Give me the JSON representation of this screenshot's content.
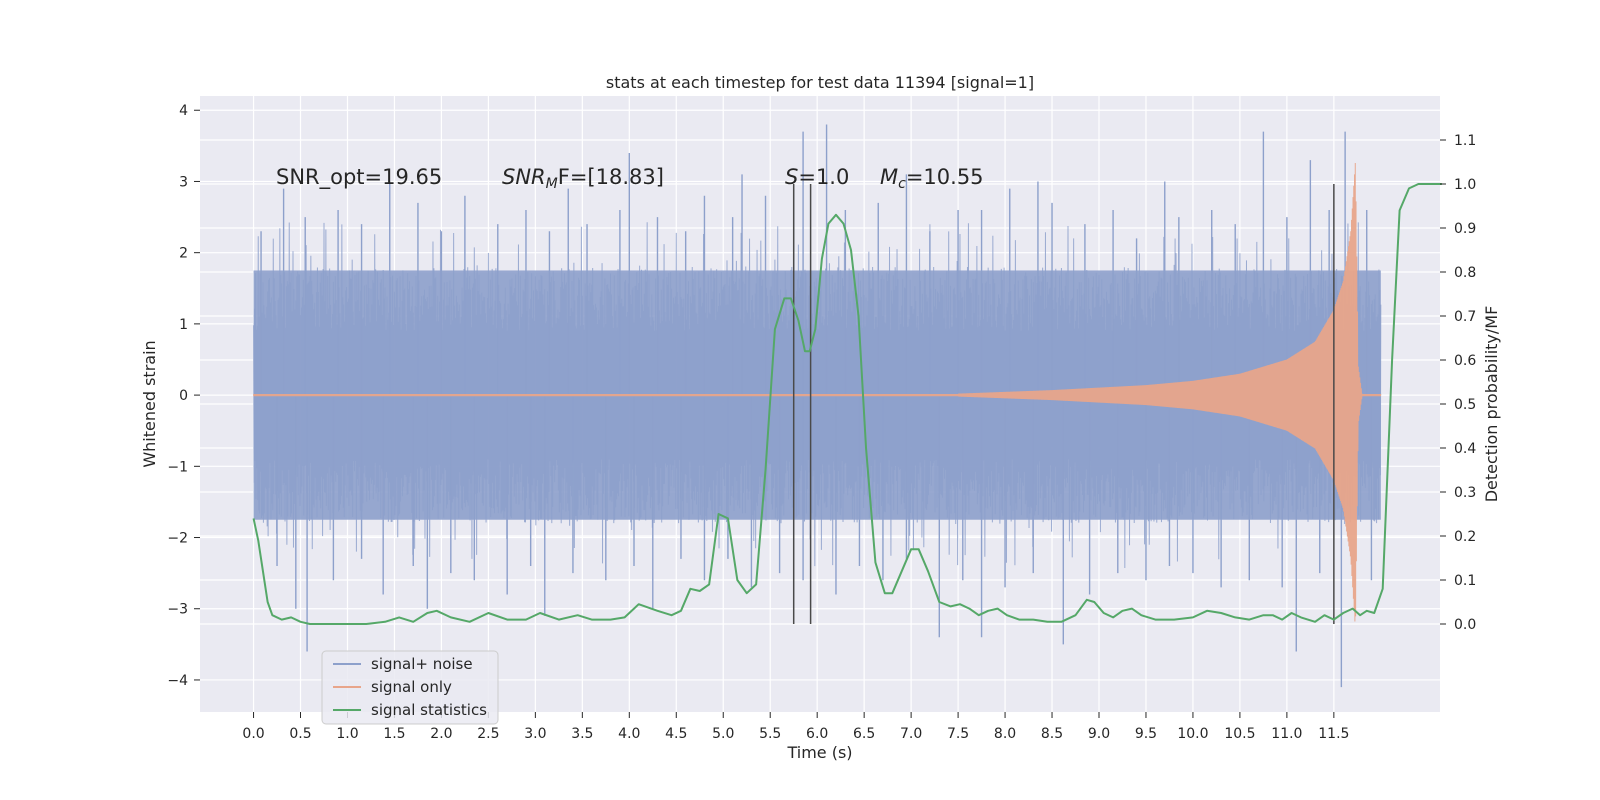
{
  "chart_data": {
    "type": "line",
    "title": "stats at each timestep for test data 11394 [signal=1]",
    "xlabel": "Time (s)",
    "ylabel_left": "Whitened strain",
    "ylabel_right": "Detection probability/MF",
    "xlim": [
      -0.57,
      12.63
    ],
    "ylim_left": [
      -4.45,
      4.2
    ],
    "ylim_right": [
      -0.2,
      1.2
    ],
    "x_ticks": [
      0.0,
      0.5,
      1.0,
      1.5,
      2.0,
      2.5,
      3.0,
      3.5,
      4.0,
      4.5,
      5.0,
      5.5,
      6.0,
      6.5,
      7.0,
      7.5,
      8.0,
      8.5,
      9.0,
      9.5,
      10.0,
      10.5,
      11.0,
      11.5
    ],
    "x_tick_labels": [
      "0.0",
      "0.5",
      "1.0",
      "1.5",
      "2.0",
      "2.5",
      "3.0",
      "3.5",
      "4.0",
      "4.5",
      "5.0",
      "5.5",
      "6.0",
      "6.5",
      "7.0",
      "7.5",
      "8.0",
      "8.5",
      "9.0",
      "9.5",
      "10.0",
      "10.5",
      "11.0",
      "11.5"
    ],
    "y_left_ticks": [
      -4,
      -3,
      -2,
      -1,
      0,
      1,
      2,
      3,
      4
    ],
    "y_left_tick_labels": [
      "−4",
      "−3",
      "−2",
      "−1",
      "0",
      "1",
      "2",
      "3",
      "4"
    ],
    "y_right_ticks": [
      0.0,
      0.1,
      0.2,
      0.3,
      0.4,
      0.5,
      0.6,
      0.7,
      0.8,
      0.9,
      1.0,
      1.1
    ],
    "y_right_tick_labels": [
      "0.0",
      "0.1",
      "0.2",
      "0.3",
      "0.4",
      "0.5",
      "0.6",
      "0.7",
      "0.8",
      "0.9",
      "1.0",
      "1.1"
    ],
    "annotations": {
      "snr_opt": "SNR_opt=19.65",
      "snr_mf_label": "SNR",
      "snr_mf_sub": "M",
      "snr_mf_rest": "F=[18.83]",
      "s_label": "S",
      "s_value": "=1.0",
      "mc_label": "M",
      "mc_sub": "c",
      "mc_value": "=10.55"
    },
    "vertical_lines_x": [
      5.75,
      5.93,
      11.5
    ],
    "vertical_lines_range_right": [
      0.0,
      1.0
    ],
    "legend": {
      "placement": "lower-left",
      "entries": [
        {
          "label": "signal+ noise",
          "color": "#8da0cb"
        },
        {
          "label": "signal only",
          "color": "#e8a58a"
        },
        {
          "label": "signal statistics",
          "color": "#55a868"
        }
      ]
    },
    "series": [
      {
        "name": "signal+ noise",
        "color": "#8da0cb",
        "x_range": [
          0.0,
          12.0
        ],
        "envelope_lower": -1.75,
        "envelope_upper": 1.75,
        "peaks": [
          [
            0.08,
            2.3
          ],
          [
            0.32,
            2.9
          ],
          [
            0.55,
            2.5
          ],
          [
            0.9,
            2.6
          ],
          [
            1.15,
            2.4
          ],
          [
            1.45,
            3.0
          ],
          [
            1.75,
            2.7
          ],
          [
            2.0,
            2.3
          ],
          [
            2.25,
            2.8
          ],
          [
            2.6,
            2.4
          ],
          [
            2.9,
            2.6
          ],
          [
            3.15,
            2.3
          ],
          [
            3.35,
            2.9
          ],
          [
            3.55,
            2.4
          ],
          [
            3.9,
            2.6
          ],
          [
            4.0,
            3.4
          ],
          [
            4.3,
            2.5
          ],
          [
            4.6,
            2.3
          ],
          [
            4.8,
            2.8
          ],
          [
            5.1,
            2.5
          ],
          [
            5.2,
            3.1
          ],
          [
            5.45,
            2.8
          ],
          [
            5.75,
            2.9
          ],
          [
            5.85,
            3.7
          ],
          [
            6.1,
            3.8
          ],
          [
            6.3,
            2.6
          ],
          [
            6.65,
            2.7
          ],
          [
            6.95,
            3.1
          ],
          [
            7.2,
            2.3
          ],
          [
            7.5,
            2.6
          ],
          [
            7.75,
            2.6
          ],
          [
            8.05,
            2.9
          ],
          [
            8.35,
            3.0
          ],
          [
            8.5,
            2.7
          ],
          [
            8.85,
            2.4
          ],
          [
            9.15,
            2.6
          ],
          [
            9.4,
            2.2
          ],
          [
            9.7,
            3.0
          ],
          [
            9.85,
            2.5
          ],
          [
            10.2,
            2.6
          ],
          [
            10.45,
            2.4
          ],
          [
            10.75,
            3.7
          ],
          [
            11.0,
            2.5
          ],
          [
            11.25,
            3.3
          ],
          [
            11.45,
            2.6
          ],
          [
            11.62,
            3.7
          ],
          [
            11.85,
            2.6
          ]
        ],
        "troughs": [
          [
            0.25,
            -2.4
          ],
          [
            0.45,
            -3.0
          ],
          [
            0.57,
            -3.6
          ],
          [
            0.85,
            -2.6
          ],
          [
            1.15,
            -2.3
          ],
          [
            1.38,
            -2.8
          ],
          [
            1.7,
            -2.4
          ],
          [
            1.85,
            -3.0
          ],
          [
            2.1,
            -2.5
          ],
          [
            2.35,
            -2.6
          ],
          [
            2.7,
            -2.8
          ],
          [
            2.95,
            -2.4
          ],
          [
            3.1,
            -3.1
          ],
          [
            3.4,
            -2.5
          ],
          [
            3.75,
            -2.6
          ],
          [
            4.05,
            -2.4
          ],
          [
            4.25,
            -3.0
          ],
          [
            4.55,
            -2.3
          ],
          [
            4.8,
            -2.6
          ],
          [
            5.05,
            -2.3
          ],
          [
            5.3,
            -2.7
          ],
          [
            5.6,
            -2.5
          ],
          [
            5.85,
            -2.6
          ],
          [
            6.2,
            -2.8
          ],
          [
            6.45,
            -2.4
          ],
          [
            6.7,
            -2.6
          ],
          [
            6.95,
            -2.3
          ],
          [
            7.3,
            -3.4
          ],
          [
            7.55,
            -2.6
          ],
          [
            7.75,
            -3.4
          ],
          [
            8.0,
            -2.7
          ],
          [
            8.3,
            -2.5
          ],
          [
            8.62,
            -3.5
          ],
          [
            8.9,
            -2.8
          ],
          [
            9.2,
            -2.5
          ],
          [
            9.5,
            -2.6
          ],
          [
            9.75,
            -2.4
          ],
          [
            10.0,
            -2.5
          ],
          [
            10.3,
            -2.7
          ],
          [
            10.6,
            -2.6
          ],
          [
            10.95,
            -2.7
          ],
          [
            11.1,
            -3.6
          ],
          [
            11.35,
            -2.5
          ],
          [
            11.58,
            -4.1
          ],
          [
            11.9,
            -2.6
          ]
        ]
      },
      {
        "name": "signal only",
        "color": "#e8a58a",
        "x_range": [
          0.0,
          12.0
        ],
        "chirp_start": 7.5,
        "merger_time": 11.73,
        "amplitude_points": [
          [
            7.5,
            0.02
          ],
          [
            8.5,
            0.07
          ],
          [
            9.5,
            0.14
          ],
          [
            10.0,
            0.2
          ],
          [
            10.5,
            0.3
          ],
          [
            11.0,
            0.5
          ],
          [
            11.3,
            0.75
          ],
          [
            11.5,
            1.2
          ],
          [
            11.6,
            1.6
          ],
          [
            11.68,
            2.3
          ],
          [
            11.73,
            3.3
          ],
          [
            11.76,
            0.4
          ],
          [
            11.8,
            0.02
          ]
        ]
      },
      {
        "name": "signal statistics",
        "color": "#55a868",
        "axis": "right",
        "points": [
          [
            0.0,
            0.24
          ],
          [
            0.05,
            0.19
          ],
          [
            0.1,
            0.12
          ],
          [
            0.15,
            0.05
          ],
          [
            0.2,
            0.02
          ],
          [
            0.3,
            0.01
          ],
          [
            0.4,
            0.015
          ],
          [
            0.5,
            0.005
          ],
          [
            0.6,
            0.0
          ],
          [
            0.8,
            0.0
          ],
          [
            1.0,
            0.0
          ],
          [
            1.2,
            0.0
          ],
          [
            1.4,
            0.005
          ],
          [
            1.55,
            0.015
          ],
          [
            1.7,
            0.005
          ],
          [
            1.85,
            0.025
          ],
          [
            1.95,
            0.03
          ],
          [
            2.1,
            0.015
          ],
          [
            2.3,
            0.005
          ],
          [
            2.5,
            0.025
          ],
          [
            2.7,
            0.01
          ],
          [
            2.9,
            0.01
          ],
          [
            3.05,
            0.025
          ],
          [
            3.25,
            0.01
          ],
          [
            3.45,
            0.02
          ],
          [
            3.6,
            0.01
          ],
          [
            3.8,
            0.01
          ],
          [
            3.95,
            0.015
          ],
          [
            4.1,
            0.045
          ],
          [
            4.3,
            0.03
          ],
          [
            4.45,
            0.02
          ],
          [
            4.55,
            0.03
          ],
          [
            4.65,
            0.08
          ],
          [
            4.75,
            0.075
          ],
          [
            4.85,
            0.09
          ],
          [
            4.95,
            0.25
          ],
          [
            5.05,
            0.24
          ],
          [
            5.15,
            0.1
          ],
          [
            5.25,
            0.07
          ],
          [
            5.35,
            0.09
          ],
          [
            5.45,
            0.35
          ],
          [
            5.55,
            0.67
          ],
          [
            5.65,
            0.74
          ],
          [
            5.72,
            0.74
          ],
          [
            5.8,
            0.69
          ],
          [
            5.87,
            0.62
          ],
          [
            5.92,
            0.62
          ],
          [
            5.98,
            0.67
          ],
          [
            6.05,
            0.83
          ],
          [
            6.12,
            0.91
          ],
          [
            6.2,
            0.93
          ],
          [
            6.28,
            0.91
          ],
          [
            6.36,
            0.85
          ],
          [
            6.44,
            0.7
          ],
          [
            6.52,
            0.4
          ],
          [
            6.62,
            0.14
          ],
          [
            6.72,
            0.07
          ],
          [
            6.8,
            0.07
          ],
          [
            6.9,
            0.12
          ],
          [
            7.0,
            0.17
          ],
          [
            7.08,
            0.17
          ],
          [
            7.18,
            0.12
          ],
          [
            7.3,
            0.05
          ],
          [
            7.42,
            0.04
          ],
          [
            7.52,
            0.045
          ],
          [
            7.62,
            0.035
          ],
          [
            7.72,
            0.02
          ],
          [
            7.82,
            0.03
          ],
          [
            7.92,
            0.035
          ],
          [
            8.02,
            0.02
          ],
          [
            8.15,
            0.01
          ],
          [
            8.3,
            0.01
          ],
          [
            8.45,
            0.005
          ],
          [
            8.6,
            0.005
          ],
          [
            8.75,
            0.02
          ],
          [
            8.87,
            0.055
          ],
          [
            8.95,
            0.05
          ],
          [
            9.05,
            0.025
          ],
          [
            9.15,
            0.015
          ],
          [
            9.25,
            0.03
          ],
          [
            9.35,
            0.035
          ],
          [
            9.45,
            0.02
          ],
          [
            9.6,
            0.01
          ],
          [
            9.8,
            0.01
          ],
          [
            10.0,
            0.015
          ],
          [
            10.15,
            0.03
          ],
          [
            10.3,
            0.025
          ],
          [
            10.45,
            0.015
          ],
          [
            10.6,
            0.01
          ],
          [
            10.75,
            0.02
          ],
          [
            10.85,
            0.02
          ],
          [
            10.95,
            0.01
          ],
          [
            11.05,
            0.025
          ],
          [
            11.15,
            0.015
          ],
          [
            11.3,
            0.005
          ],
          [
            11.4,
            0.02
          ],
          [
            11.5,
            0.01
          ],
          [
            11.6,
            0.025
          ],
          [
            11.7,
            0.035
          ],
          [
            11.78,
            0.02
          ],
          [
            11.85,
            0.03
          ],
          [
            11.93,
            0.025
          ],
          [
            12.02,
            0.08
          ],
          [
            12.12,
            0.6
          ],
          [
            12.2,
            0.94
          ],
          [
            12.3,
            0.99
          ],
          [
            12.4,
            1.0
          ],
          [
            12.65,
            1.0
          ]
        ]
      }
    ]
  }
}
